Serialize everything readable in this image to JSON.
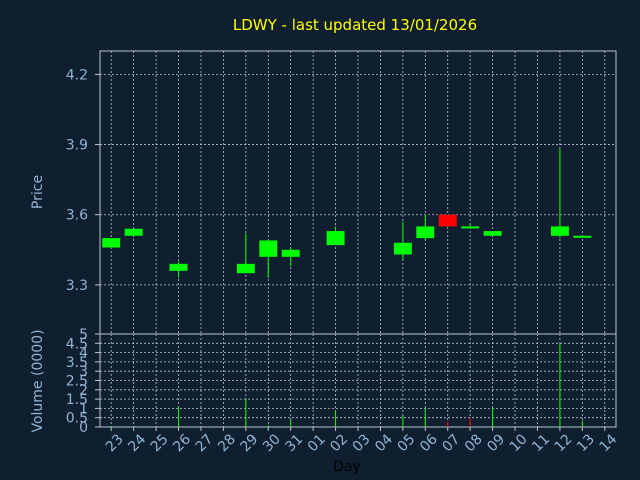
{
  "chart_data": [
    {
      "type": "candlestick",
      "title": "LDWY - last updated 13/01/2026",
      "ylabel": "Price",
      "ylim": [
        3.09,
        4.3
      ],
      "yticks": [
        "3.3",
        "3.6",
        "3.9",
        "4.2"
      ],
      "yticks_values": [
        3.3,
        3.6,
        3.9,
        4.2
      ],
      "grid": true,
      "up_color": "#00ff00",
      "down_color": "#ff0000",
      "candles": [
        {
          "day": "23",
          "open": 3.46,
          "high": 3.5,
          "low": 3.46,
          "close": 3.5
        },
        {
          "day": "24",
          "open": 3.51,
          "high": 3.54,
          "low": 3.51,
          "close": 3.54
        },
        {
          "day": "26",
          "open": 3.36,
          "high": 3.4,
          "low": 3.33,
          "close": 3.39
        },
        {
          "day": "29",
          "open": 3.35,
          "high": 3.52,
          "low": 3.35,
          "close": 3.39
        },
        {
          "day": "30",
          "open": 3.42,
          "high": 3.49,
          "low": 3.33,
          "close": 3.49
        },
        {
          "day": "31",
          "open": 3.42,
          "high": 3.46,
          "low": 3.38,
          "close": 3.45
        },
        {
          "day": "02",
          "open": 3.47,
          "high": 3.55,
          "low": 3.47,
          "close": 3.53
        },
        {
          "day": "05",
          "open": 3.43,
          "high": 3.57,
          "low": 3.41,
          "close": 3.48
        },
        {
          "day": "06",
          "open": 3.5,
          "high": 3.6,
          "low": 3.49,
          "close": 3.55
        },
        {
          "day": "07",
          "open": 3.6,
          "high": 3.6,
          "low": 3.55,
          "close": 3.55
        },
        {
          "day": "08",
          "open": 3.55,
          "high": 3.56,
          "low": 3.54,
          "close": 3.55
        },
        {
          "day": "09",
          "open": 3.51,
          "high": 3.53,
          "low": 3.51,
          "close": 3.53
        },
        {
          "day": "12",
          "open": 3.51,
          "high": 3.88,
          "low": 3.5,
          "close": 3.55
        },
        {
          "day": "13",
          "open": 3.51,
          "high": 3.51,
          "low": 3.51,
          "close": 3.51
        }
      ]
    },
    {
      "type": "bar",
      "ylabel": "Volume (0000)",
      "xlabel": "Day",
      "ylim": [
        0,
        5
      ],
      "yticks": [
        "0",
        "0.5",
        "1",
        "1.5",
        "2",
        "2.5",
        "3",
        "3.5",
        "4",
        "4.5",
        "5"
      ],
      "yticks_values": [
        0,
        0.5,
        1,
        1.5,
        2,
        2.5,
        3,
        3.5,
        4,
        4.5,
        5
      ],
      "categories": [
        "23",
        "24",
        "25",
        "26",
        "27",
        "28",
        "29",
        "30",
        "31",
        "01",
        "02",
        "03",
        "04",
        "05",
        "06",
        "07",
        "08",
        "09",
        "10",
        "11",
        "12",
        "13",
        "14"
      ],
      "values": [
        0.05,
        0.05,
        0,
        1.1,
        0,
        0,
        1.5,
        0.1,
        0.4,
        0,
        0.9,
        0,
        0,
        0.6,
        1.0,
        0.3,
        0.5,
        1.0,
        0,
        0,
        4.5,
        0.35,
        0
      ],
      "colors": [
        "#00ff00",
        "#00ff00",
        "#00ff00",
        "#00ff00",
        "#00ff00",
        "#00ff00",
        "#00ff00",
        "#00ff00",
        "#00ff00",
        "#00ff00",
        "#00ff00",
        "#00ff00",
        "#00ff00",
        "#00ff00",
        "#00ff00",
        "#ff0000",
        "#ff0000",
        "#00ff00",
        "#00ff00",
        "#00ff00",
        "#00ff00",
        "#00ff00",
        "#00ff00"
      ]
    }
  ]
}
